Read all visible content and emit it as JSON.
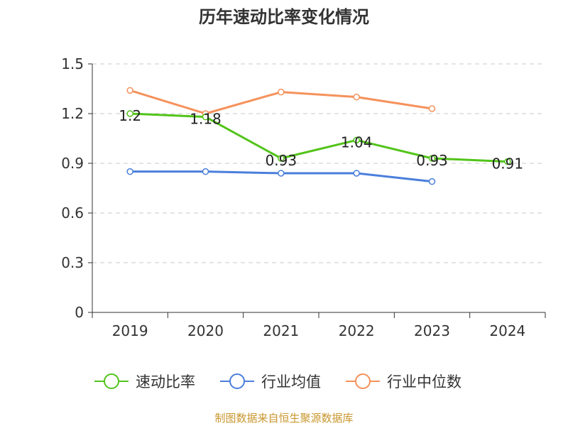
{
  "title": "历年速动比率变化情况",
  "source": "制图数据来自恒生聚源数据库",
  "chart_data": {
    "type": "line",
    "title": "历年速动比率变化情况",
    "categories": [
      "2019",
      "2020",
      "2021",
      "2022",
      "2023",
      "2024"
    ],
    "ylim": [
      0,
      1.5
    ],
    "yticks": [
      "0",
      "0.3",
      "0.6",
      "0.9",
      "1.2",
      "1.5"
    ],
    "grid": true,
    "legend": "bottom",
    "series": [
      {
        "name": "速动比率",
        "color": "#52c41a",
        "values": [
          1.2,
          1.18,
          0.93,
          1.04,
          0.93,
          0.91
        ],
        "labels": [
          "1.2",
          "1.18",
          "0.93",
          "1.04",
          "0.93",
          "0.91"
        ]
      },
      {
        "name": "行业均值",
        "color": "#4a7fdb",
        "values": [
          0.85,
          0.85,
          0.84,
          0.84,
          0.79,
          null
        ]
      },
      {
        "name": "行业中位数",
        "color": "#f5925c",
        "values": [
          1.34,
          1.2,
          1.33,
          1.3,
          1.23,
          null
        ]
      }
    ]
  }
}
